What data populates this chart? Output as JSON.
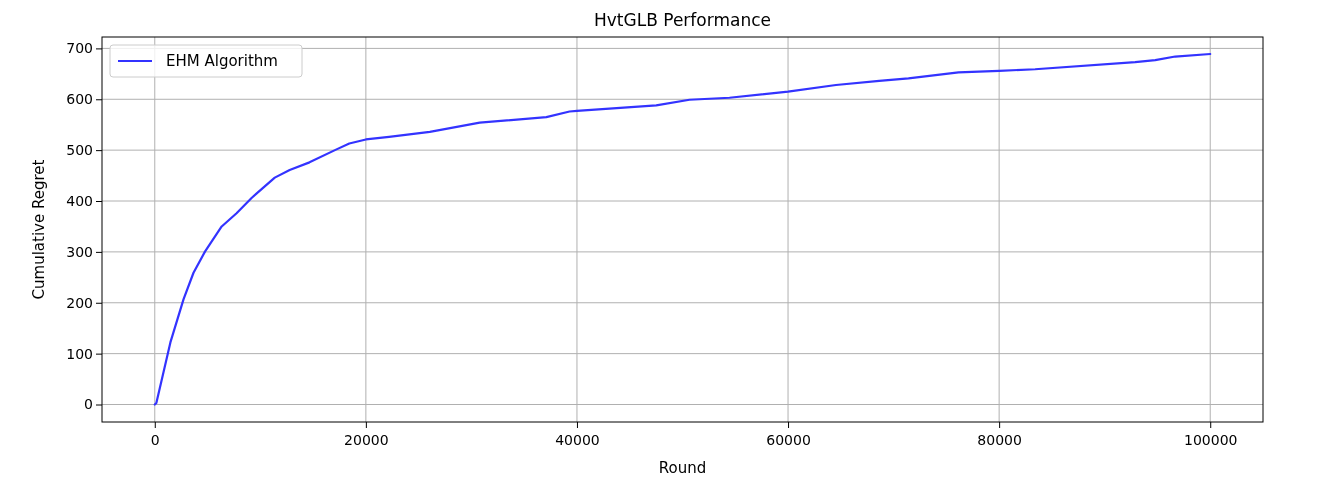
{
  "chart_data": {
    "type": "line",
    "title": "HvtGLB Performance",
    "xlabel": "Round",
    "ylabel": "Cumulative Regret",
    "x": [
      0,
      150,
      1480,
      2730,
      3670,
      4770,
      6340,
      7750,
      9170,
      11370,
      12780,
      14660,
      17170,
      18430,
      20000,
      22200,
      26060,
      30790,
      37100,
      39300,
      40000,
      47510,
      50660,
      54450,
      60000,
      64540,
      68640,
      71410,
      76150,
      80000,
      83410,
      92890,
      94790,
      96680,
      100000
    ],
    "series": [
      {
        "name": "EHM Algorithm",
        "color": "#3333ff",
        "values": [
          0,
          3,
          122,
          207,
          259,
          301,
          350,
          376,
          406,
          446,
          461,
          476,
          501,
          513,
          521,
          526,
          536,
          554,
          565,
          576,
          577,
          588,
          599,
          603,
          615,
          628,
          636,
          641,
          653,
          656,
          659,
          673,
          677,
          684,
          689
        ]
      }
    ],
    "xlim": [
      -5000,
      105000
    ],
    "ylim": [
      -34.4,
      722.4
    ],
    "xticks": [
      0,
      20000,
      40000,
      60000,
      80000,
      100000
    ],
    "yticks": [
      0,
      100,
      200,
      300,
      400,
      500,
      600,
      700
    ],
    "grid": true,
    "legend": "top left",
    "line_style": "solid",
    "marker": "none"
  }
}
